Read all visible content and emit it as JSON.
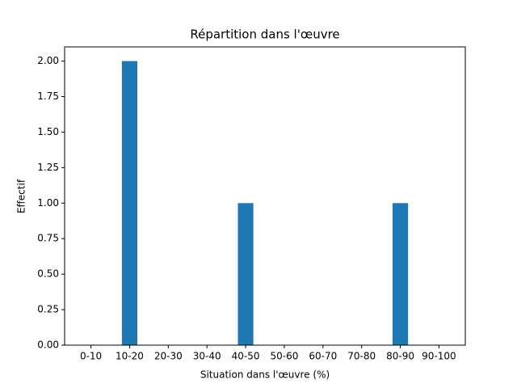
{
  "chart_data": {
    "type": "bar",
    "title": "Répartition dans l'œuvre",
    "x_label": "Situation dans l'œuvre (%)",
    "y_label": "Effectif",
    "categories": [
      "0-10",
      "10-20",
      "20-30",
      "30-40",
      "40-50",
      "50-60",
      "60-70",
      "70-80",
      "80-90",
      "90-100"
    ],
    "values": [
      0,
      2,
      0,
      0,
      1,
      0,
      0,
      0,
      1,
      0
    ],
    "color": "#1f77b4",
    "ylim": [
      0,
      2.1
    ],
    "yticks": [
      {
        "value": 0,
        "label": "0.00"
      },
      {
        "value": 0.25,
        "label": "0.25"
      },
      {
        "value": 0.5,
        "label": "0.50"
      },
      {
        "value": 0.75,
        "label": "0.75"
      },
      {
        "value": 1,
        "label": "1.00"
      },
      {
        "value": 1.25,
        "label": "1.25"
      },
      {
        "value": 1.5,
        "label": "1.50"
      },
      {
        "value": 1.75,
        "label": "1.75"
      },
      {
        "value": 2,
        "label": "2.00"
      }
    ],
    "grid": false
  }
}
